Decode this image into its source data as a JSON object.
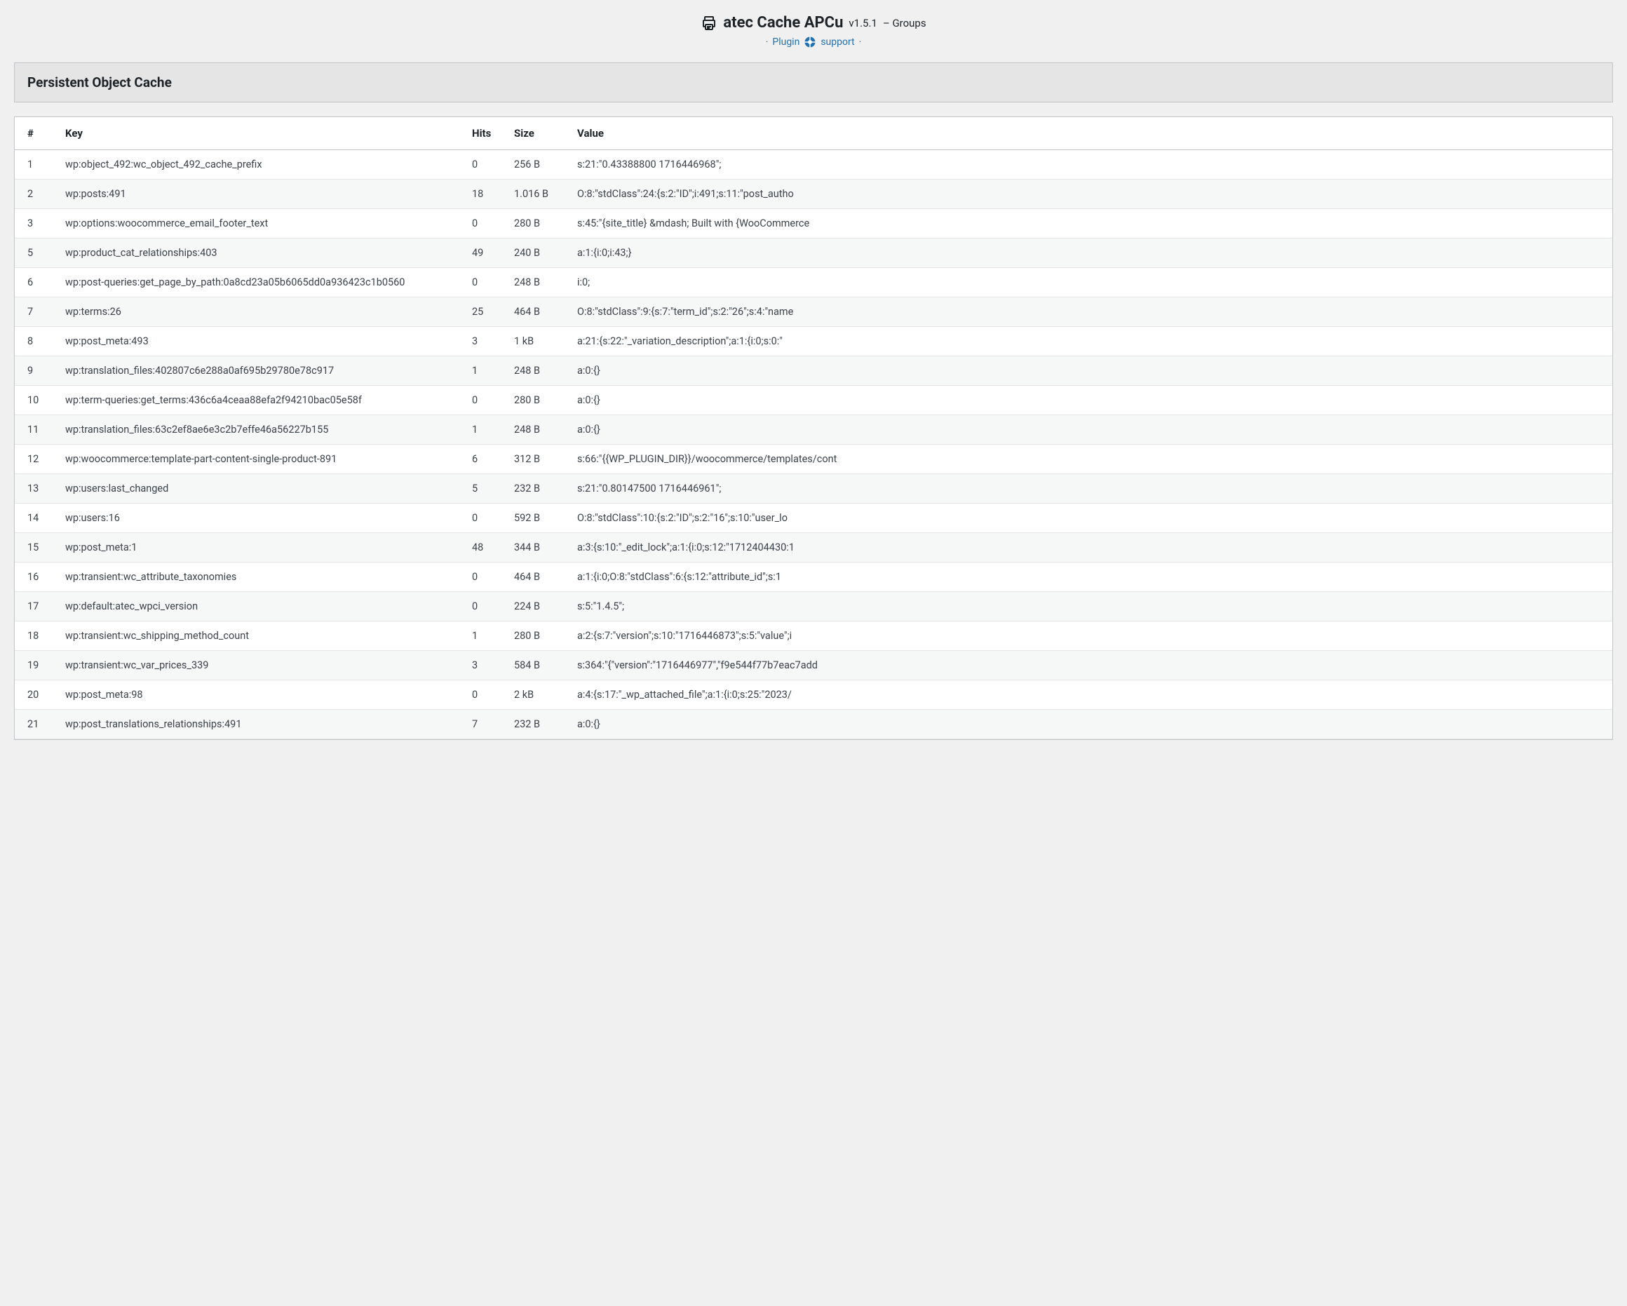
{
  "header": {
    "title_main": "atec Cache APCu",
    "title_version": "v1.5.1",
    "title_suffix": "– Groups",
    "plugin_link": "Plugin",
    "support_link": "support",
    "dot": "·"
  },
  "section": {
    "title": "Persistent Object Cache"
  },
  "table": {
    "columns": {
      "num": "#",
      "key": "Key",
      "hits": "Hits",
      "size": "Size",
      "value": "Value"
    },
    "rows": [
      {
        "num": "1",
        "key": "wp:object_492:wc_object_492_cache_prefix",
        "hits": "0",
        "size": "256 B",
        "value": "s:21:\"0.43388800 1716446968\";"
      },
      {
        "num": "2",
        "key": "wp:posts:491",
        "hits": "18",
        "size": "1.016 B",
        "value": "O:8:\"stdClass\":24:{s:2:\"ID\";i:491;s:11:\"post_autho"
      },
      {
        "num": "3",
        "key": "wp:options:woocommerce_email_footer_text",
        "hits": "0",
        "size": "280 B",
        "value": "s:45:\"{site_title} &mdash; Built with {WooCommerce"
      },
      {
        "num": "5",
        "key": "wp:product_cat_relationships:403",
        "hits": "49",
        "size": "240 B",
        "value": "a:1:{i:0;i:43;}"
      },
      {
        "num": "6",
        "key": "wp:post-queries:get_page_by_path:0a8cd23a05b6065dd0a936423c1b0560",
        "hits": "0",
        "size": "248 B",
        "value": "i:0;"
      },
      {
        "num": "7",
        "key": "wp:terms:26",
        "hits": "25",
        "size": "464 B",
        "value": "O:8:\"stdClass\":9:{s:7:\"term_id\";s:2:\"26\";s:4:\"name"
      },
      {
        "num": "8",
        "key": "wp:post_meta:493",
        "hits": "3",
        "size": "1 kB",
        "value": "a:21:{s:22:\"_variation_description\";a:1:{i:0;s:0:\""
      },
      {
        "num": "9",
        "key": "wp:translation_files:402807c6e288a0af695b29780e78c917",
        "hits": "1",
        "size": "248 B",
        "value": "a:0:{}"
      },
      {
        "num": "10",
        "key": "wp:term-queries:get_terms:436c6a4ceaa88efa2f94210bac05e58f",
        "hits": "0",
        "size": "280 B",
        "value": "a:0:{}"
      },
      {
        "num": "11",
        "key": "wp:translation_files:63c2ef8ae6e3c2b7effe46a56227b155",
        "hits": "1",
        "size": "248 B",
        "value": "a:0:{}"
      },
      {
        "num": "12",
        "key": "wp:woocommerce:template-part-content-single-product-891",
        "hits": "6",
        "size": "312 B",
        "value": "s:66:\"{{WP_PLUGIN_DIR}}/woocommerce/templates/cont"
      },
      {
        "num": "13",
        "key": "wp:users:last_changed",
        "hits": "5",
        "size": "232 B",
        "value": "s:21:\"0.80147500 1716446961\";"
      },
      {
        "num": "14",
        "key": "wp:users:16",
        "hits": "0",
        "size": "592 B",
        "value": "O:8:\"stdClass\":10:{s:2:\"ID\";s:2:\"16\";s:10:\"user_lo"
      },
      {
        "num": "15",
        "key": "wp:post_meta:1",
        "hits": "48",
        "size": "344 B",
        "value": "a:3:{s:10:\"_edit_lock\";a:1:{i:0;s:12:\"1712404430:1"
      },
      {
        "num": "16",
        "key": "wp:transient:wc_attribute_taxonomies",
        "hits": "0",
        "size": "464 B",
        "value": "a:1:{i:0;O:8:\"stdClass\":6:{s:12:\"attribute_id\";s:1"
      },
      {
        "num": "17",
        "key": "wp:default:atec_wpci_version",
        "hits": "0",
        "size": "224 B",
        "value": "s:5:\"1.4.5\";"
      },
      {
        "num": "18",
        "key": "wp:transient:wc_shipping_method_count",
        "hits": "1",
        "size": "280 B",
        "value": "a:2:{s:7:\"version\";s:10:\"1716446873\";s:5:\"value\";i"
      },
      {
        "num": "19",
        "key": "wp:transient:wc_var_prices_339",
        "hits": "3",
        "size": "584 B",
        "value": "s:364:\"{\"version\":\"1716446977\",\"f9e544f77b7eac7add"
      },
      {
        "num": "20",
        "key": "wp:post_meta:98",
        "hits": "0",
        "size": "2 kB",
        "value": "a:4:{s:17:\"_wp_attached_file\";a:1:{i:0;s:25:\"2023/"
      },
      {
        "num": "21",
        "key": "wp:post_translations_relationships:491",
        "hits": "7",
        "size": "232 B",
        "value": "a:0:{}"
      }
    ]
  },
  "colors": {
    "background": "#f0f0f1",
    "border": "#c3c4c7",
    "row_alt": "#f6f7f7",
    "text": "#1d2327",
    "text_muted": "#3c434a",
    "link": "#2271b1",
    "section_bg": "#e5e5e5"
  }
}
